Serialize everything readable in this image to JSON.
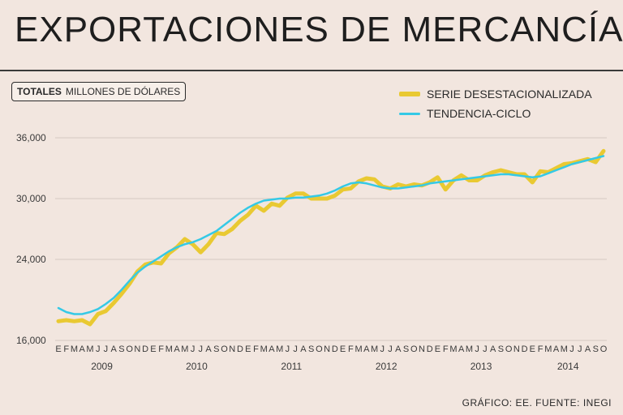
{
  "header": {
    "title": "EXPORTACIONES DE MERCANCÍAS",
    "units_strong": "TOTALES",
    "units_rest": "MILLONES DE DÓLARES"
  },
  "footer": {
    "credit": "GRÁFICO: EE. FUENTE: INEGI"
  },
  "colors": {
    "background": "#f2e6df",
    "seasonal": "#e9c932",
    "trend": "#35c9e6",
    "grid": "#d4c8c1"
  },
  "chart_data": {
    "type": "line",
    "title": "EXPORTACIONES DE MERCANCÍAS",
    "ylabel": "MILLONES DE DÓLARES",
    "ylim": [
      16000,
      36000
    ],
    "yticks": [
      16000,
      24000,
      30000,
      36000
    ],
    "ytick_labels": [
      "16,000",
      "24,000",
      "30,000",
      "36,000"
    ],
    "month_labels": [
      "E",
      "F",
      "M",
      "A",
      "M",
      "J",
      "J",
      "A",
      "S",
      "O",
      "N",
      "D",
      "E",
      "F",
      "M",
      "A",
      "M",
      "J",
      "J",
      "A",
      "S",
      "O",
      "N",
      "D",
      "E",
      "F",
      "M",
      "A",
      "M",
      "J",
      "J",
      "A",
      "S",
      "O",
      "N",
      "D",
      "E",
      "F",
      "M",
      "A",
      "M",
      "J",
      "J",
      "A",
      "S",
      "O",
      "N",
      "D",
      "E",
      "F",
      "M",
      "A",
      "M",
      "J",
      "J",
      "A",
      "S",
      "O",
      "N",
      "D",
      "E",
      "F",
      "M",
      "A",
      "M",
      "J",
      "J",
      "A",
      "S",
      "O"
    ],
    "years": [
      {
        "label": "2009",
        "start_index": 0
      },
      {
        "label": "2010",
        "start_index": 12
      },
      {
        "label": "2011",
        "start_index": 24
      },
      {
        "label": "2012",
        "start_index": 36
      },
      {
        "label": "2013",
        "start_index": 48
      },
      {
        "label": "2014",
        "start_index": 60
      }
    ],
    "legend_position": "top-right",
    "series": [
      {
        "name": "SERIE DESESTACIONALIZADA",
        "values": [
          17900,
          18000,
          17900,
          18000,
          17600,
          18600,
          18900,
          19700,
          20600,
          21600,
          22800,
          23500,
          23700,
          23600,
          24600,
          25200,
          26000,
          25500,
          24700,
          25500,
          26600,
          26500,
          27000,
          27800,
          28400,
          29300,
          28800,
          29500,
          29300,
          30100,
          30500,
          30500,
          30000,
          30000,
          30000,
          30300,
          30900,
          31000,
          31700,
          32000,
          31900,
          31200,
          31000,
          31400,
          31200,
          31400,
          31300,
          31600,
          32100,
          30900,
          31800,
          32300,
          31800,
          31800,
          32300,
          32600,
          32800,
          32600,
          32400,
          32400,
          31600,
          32700,
          32600,
          33000,
          33400,
          33500,
          33700,
          33900,
          33600,
          34700
        ]
      },
      {
        "name": "TENDENCIA-CICLO",
        "values": [
          19200,
          18800,
          18600,
          18600,
          18800,
          19100,
          19600,
          20200,
          21000,
          21900,
          22700,
          23300,
          23800,
          24300,
          24800,
          25200,
          25500,
          25700,
          26000,
          26400,
          26800,
          27400,
          28000,
          28600,
          29100,
          29500,
          29800,
          29900,
          30000,
          30000,
          30100,
          30100,
          30200,
          30300,
          30500,
          30800,
          31200,
          31500,
          31600,
          31500,
          31300,
          31100,
          31000,
          31000,
          31100,
          31200,
          31300,
          31500,
          31600,
          31700,
          31800,
          31900,
          32000,
          32100,
          32200,
          32300,
          32400,
          32400,
          32300,
          32200,
          32100,
          32200,
          32500,
          32800,
          33100,
          33400,
          33600,
          33800,
          34000,
          34200
        ]
      }
    ]
  }
}
